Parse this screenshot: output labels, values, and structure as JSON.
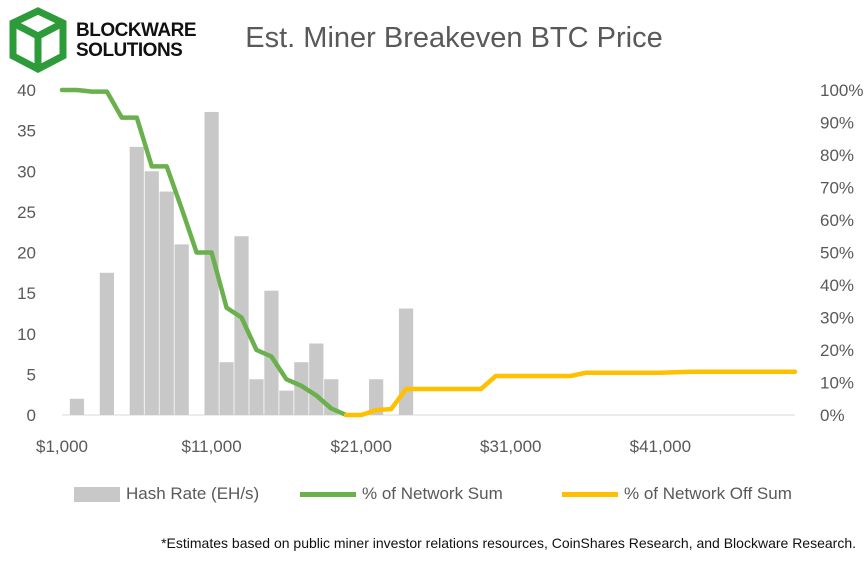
{
  "logo": {
    "line1": "BLOCKWARE",
    "line2": "SOLUTIONS",
    "color": "#2e9b3a"
  },
  "title": "Est. Miner Breakeven BTC Price",
  "footnote": "*Estimates based on public miner investor relations resources, CoinShares Research, and Blockware Research.",
  "chart_data": {
    "type": "bar+line",
    "title": "Est. Miner Breakeven BTC Price",
    "x_range": [
      1000,
      50000
    ],
    "x_ticks": [
      "$1,000",
      "$11,000",
      "$21,000",
      "$31,000",
      "$41,000"
    ],
    "x_tick_values": [
      1000,
      11000,
      21000,
      31000,
      41000
    ],
    "y_left_range": [
      0,
      40
    ],
    "y_left_ticks": [
      "0",
      "5",
      "10",
      "15",
      "20",
      "25",
      "30",
      "35",
      "40"
    ],
    "y_right_range": [
      0,
      1
    ],
    "y_right_ticks": [
      "0%",
      "10%",
      "20%",
      "30%",
      "40%",
      "50%",
      "60%",
      "70%",
      "80%",
      "90%",
      "100%"
    ],
    "bar_width": 950,
    "bars": {
      "name": "Hash Rate (EH/s)",
      "color": "#c8c8c8",
      "x": [
        2000,
        4000,
        6000,
        7000,
        8000,
        9000,
        11000,
        12000,
        13000,
        14000,
        15000,
        16000,
        17000,
        18000,
        19000,
        22000,
        24000
      ],
      "values": [
        2.0,
        17.5,
        33.0,
        30.0,
        27.5,
        21.0,
        37.3,
        6.5,
        22.0,
        4.4,
        15.3,
        3.0,
        6.5,
        8.8,
        4.4,
        4.4,
        13.1
      ]
    },
    "series": [
      {
        "name": "% of Network Sum",
        "color": "#6ab04c",
        "x": [
          1000,
          2000,
          3000,
          4000,
          5000,
          6000,
          7000,
          8000,
          9000,
          10000,
          11000,
          12000,
          13000,
          14000,
          15000,
          16000,
          17000,
          18000,
          19000,
          20000
        ],
        "values": [
          1.0,
          1.0,
          0.995,
          0.995,
          0.915,
          0.915,
          0.765,
          0.765,
          0.635,
          0.5,
          0.5,
          0.33,
          0.3,
          0.2,
          0.18,
          0.11,
          0.09,
          0.06,
          0.02,
          0.0
        ]
      },
      {
        "name": "% of Network Off Sum",
        "color": "#ffc000",
        "x": [
          20000,
          21000,
          22000,
          23000,
          24000,
          25000,
          26000,
          27000,
          28000,
          29000,
          30000,
          35000,
          36000,
          37000,
          40000,
          41000,
          43000,
          45000,
          48000,
          50000
        ],
        "values": [
          0.0,
          0.0,
          0.015,
          0.018,
          0.08,
          0.08,
          0.08,
          0.08,
          0.08,
          0.08,
          0.12,
          0.12,
          0.13,
          0.13,
          0.13,
          0.13,
          0.133,
          0.133,
          0.133,
          0.133
        ]
      }
    ],
    "legend_position": "bottom"
  }
}
